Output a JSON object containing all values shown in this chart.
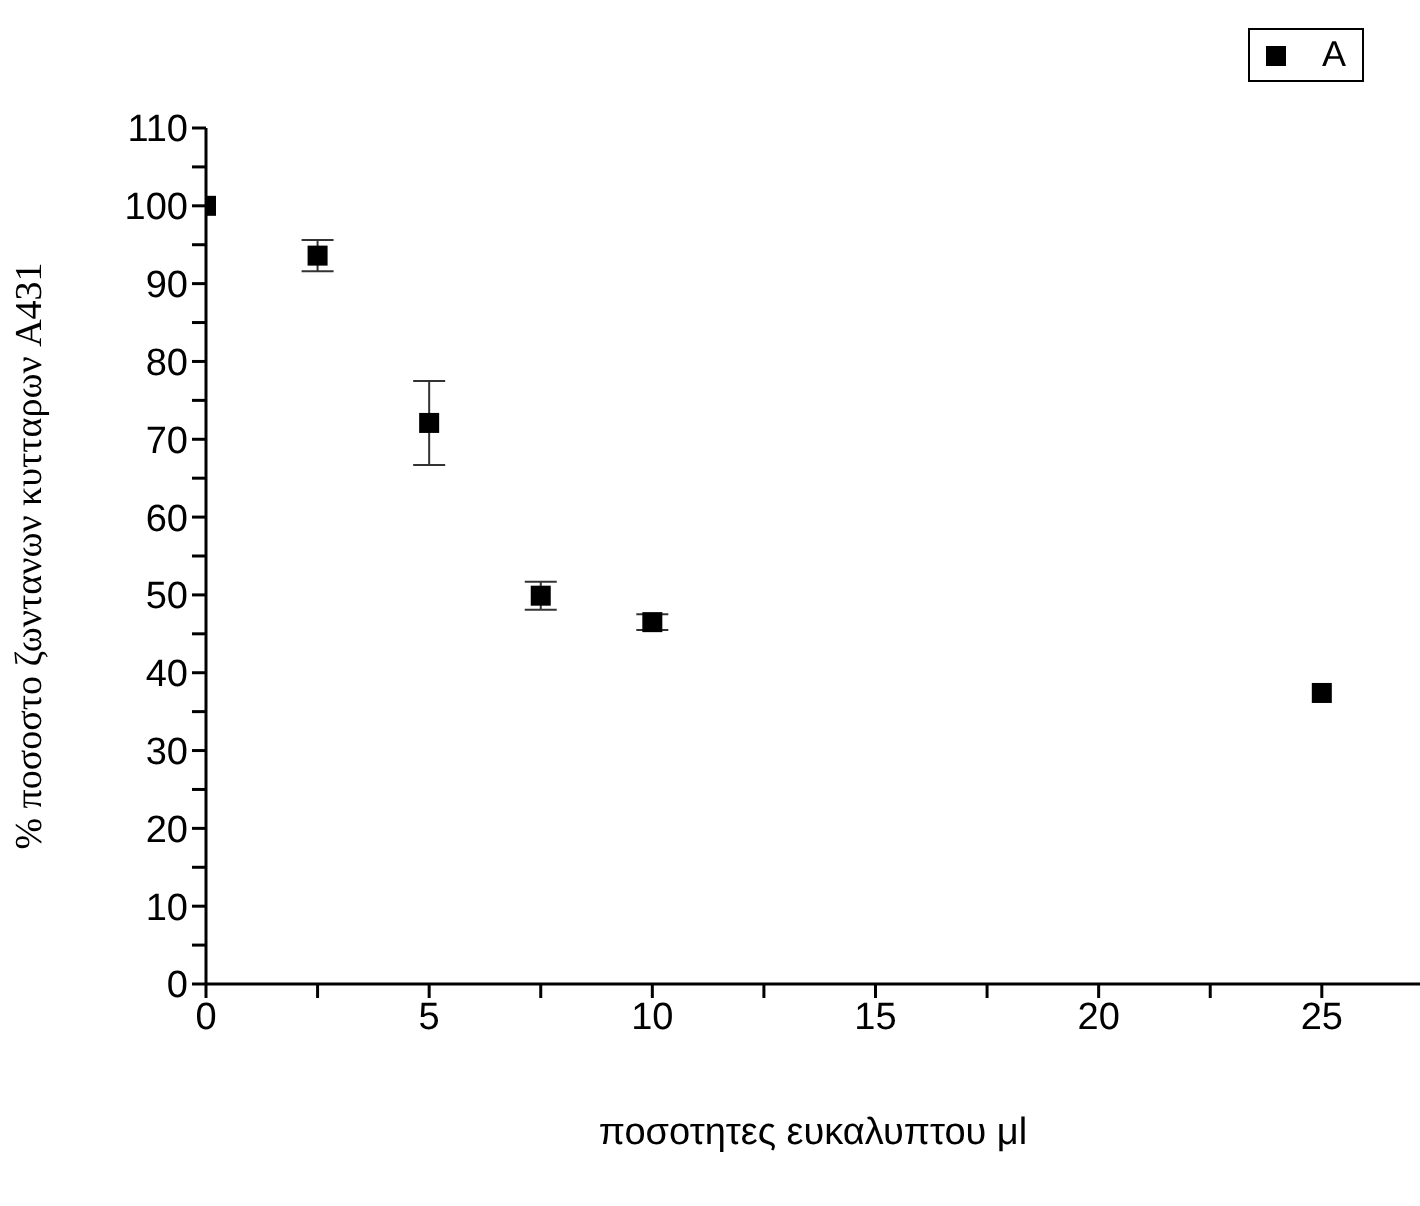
{
  "chart_data": {
    "type": "scatter",
    "xlabel": "ποσοτητες ευκαλυπτου μl",
    "ylabel": "% ποσοστο ζωντανων κυτταρων A431",
    "x": [
      0,
      2.5,
      5,
      7.5,
      10,
      25
    ],
    "series": [
      {
        "name": "A",
        "color": "#000000",
        "values": [
          100,
          93.6,
          72.1,
          49.9,
          46.5,
          37.4
        ],
        "errors": [
          null,
          2,
          5.4,
          1.8,
          1,
          null
        ]
      }
    ],
    "xlim": [
      0,
      27.2
    ],
    "ylim": [
      0,
      110
    ],
    "xticks": [
      0,
      {
        "value": 2.5,
        "label": null
      },
      5,
      {
        "value": 7.5,
        "label": null
      },
      10,
      {
        "value": 12.5,
        "label": null
      },
      15,
      {
        "value": 17.5,
        "label": null
      },
      20,
      {
        "value": 22.5,
        "label": null
      },
      25
    ],
    "yticks": [
      0,
      {
        "value": 5,
        "label": null
      },
      10,
      {
        "value": 15,
        "label": null
      },
      20,
      {
        "value": 25,
        "label": null
      },
      30,
      {
        "value": 35,
        "label": null
      },
      40,
      {
        "value": 45,
        "label": null
      },
      50,
      {
        "value": 55,
        "label": null
      },
      60,
      {
        "value": 65,
        "label": null
      },
      70,
      {
        "value": 75,
        "label": null
      },
      80,
      {
        "value": 85,
        "label": null
      },
      90,
      {
        "value": 95,
        "label": null
      },
      100,
      {
        "value": 105,
        "label": null
      },
      110
    ],
    "marker": "square",
    "legend": "top right",
    "grid": false
  }
}
